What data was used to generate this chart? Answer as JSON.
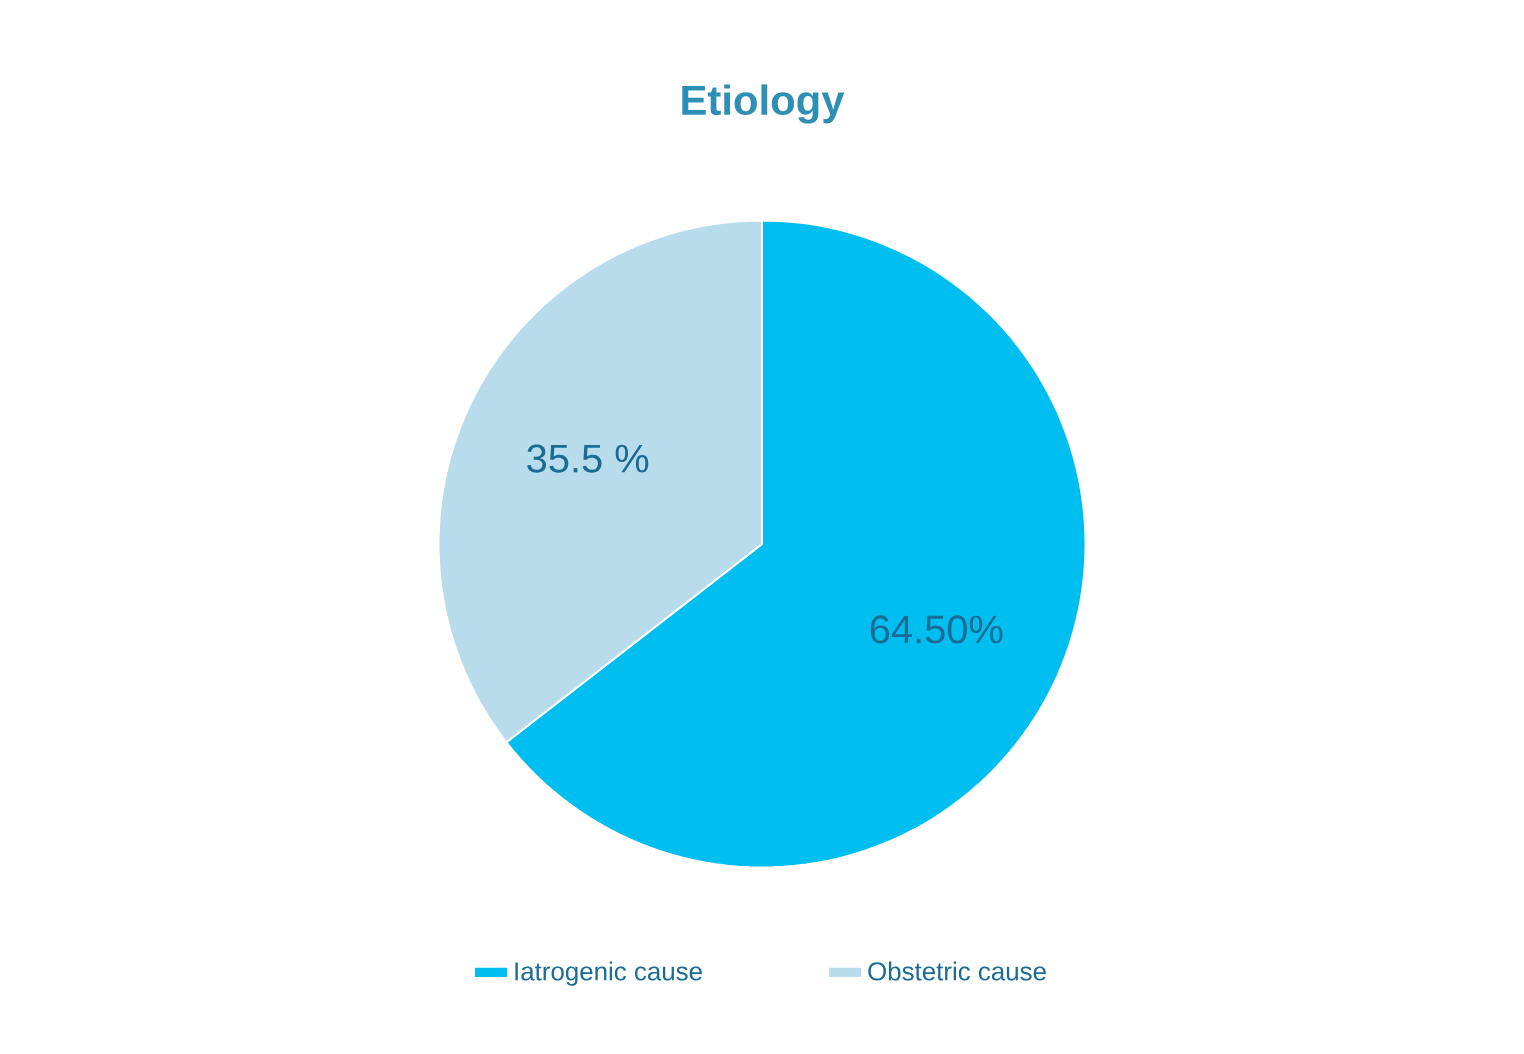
{
  "chart_data": {
    "type": "pie",
    "title": "Etiology",
    "categories": [
      "Iatrogenic cause",
      "Obstetric cause"
    ],
    "values": [
      64.5,
      35.5
    ],
    "value_labels": [
      "64.50%",
      "35.5 %"
    ],
    "colors": [
      "#00bff0",
      "#b9dcec"
    ],
    "legend": "bottom"
  }
}
